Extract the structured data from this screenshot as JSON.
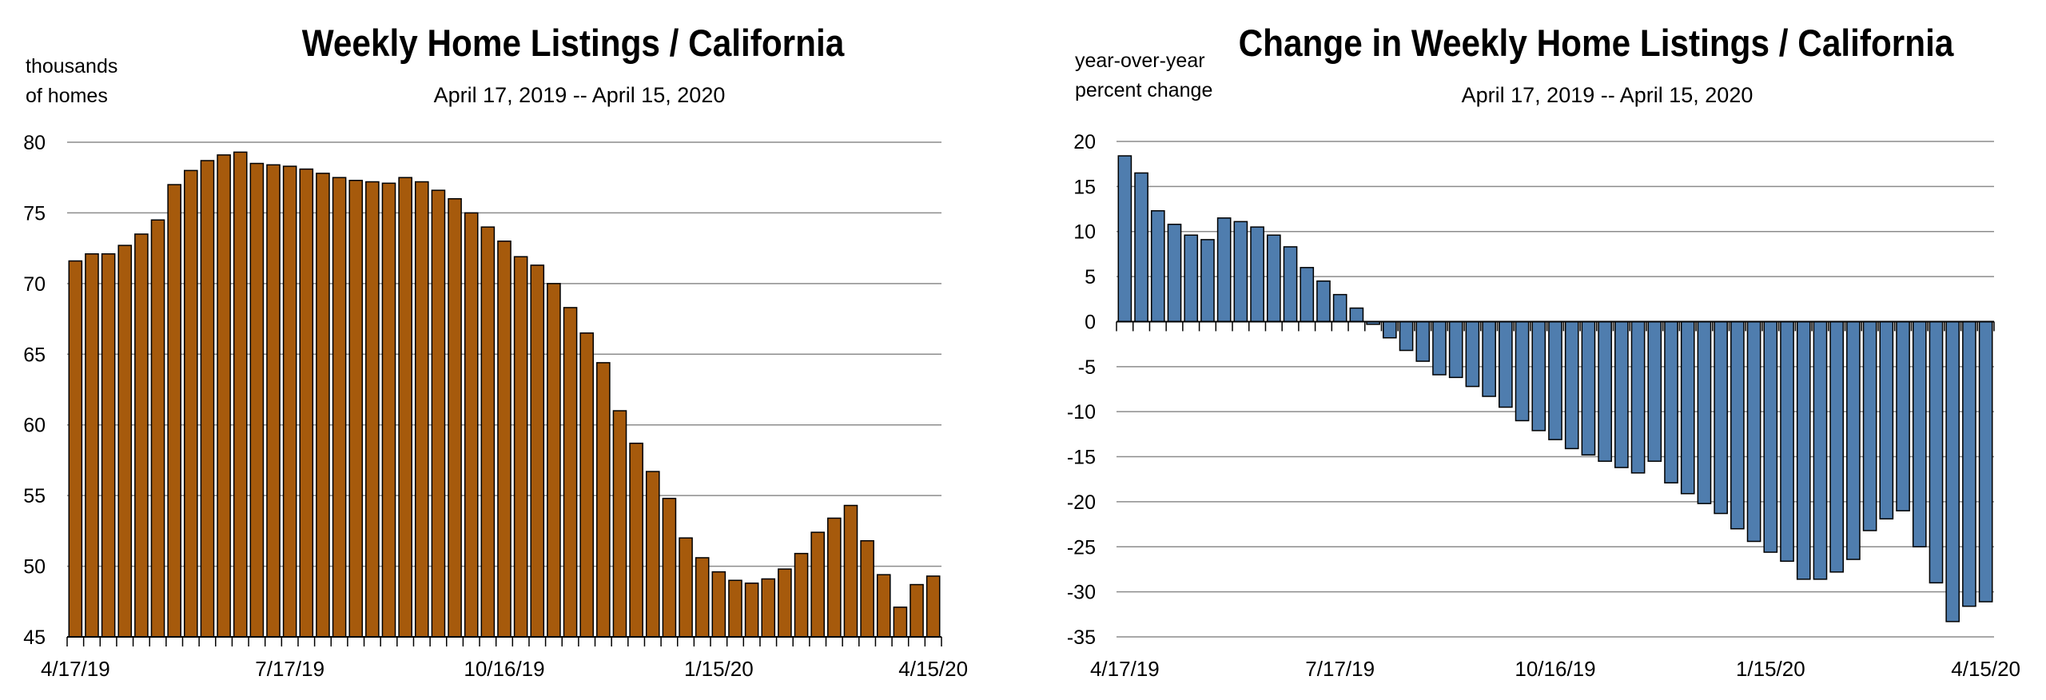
{
  "chart_data": [
    {
      "type": "bar",
      "title": "Weekly Home Listings / California",
      "subtitle": "April 17, 2019 -- April 15, 2020",
      "ylabel": "thousands\nof homes",
      "xlabel": "",
      "ylim": [
        45,
        80
      ],
      "yticks": [
        45,
        50,
        55,
        60,
        65,
        70,
        75,
        80
      ],
      "x_tick_labels": [
        "4/17/19",
        "7/17/19",
        "10/16/19",
        "1/15/20",
        "4/15/20"
      ],
      "grid": true,
      "bar_color": "#A65A0C",
      "x": [
        "4/17/19",
        "4/24/19",
        "5/1/19",
        "5/8/19",
        "5/15/19",
        "5/22/19",
        "5/29/19",
        "6/5/19",
        "6/12/19",
        "6/19/19",
        "6/26/19",
        "7/3/19",
        "7/10/19",
        "7/17/19",
        "7/24/19",
        "7/31/19",
        "8/7/19",
        "8/14/19",
        "8/21/19",
        "8/28/19",
        "9/4/19",
        "9/11/19",
        "9/18/19",
        "9/25/19",
        "10/2/19",
        "10/9/19",
        "10/16/19",
        "10/23/19",
        "10/30/19",
        "11/6/19",
        "11/13/19",
        "11/20/19",
        "11/27/19",
        "12/4/19",
        "12/11/19",
        "12/18/19",
        "12/25/19",
        "1/1/20",
        "1/8/20",
        "1/15/20",
        "1/22/20",
        "1/29/20",
        "2/5/20",
        "2/12/20",
        "2/19/20",
        "2/26/20",
        "3/4/20",
        "3/11/20",
        "3/18/20",
        "3/25/20",
        "4/1/20",
        "4/8/20",
        "4/15/20"
      ],
      "values": [
        71.6,
        72.1,
        72.1,
        72.7,
        73.5,
        74.5,
        77.0,
        78.0,
        78.7,
        79.1,
        79.3,
        78.5,
        78.4,
        78.3,
        78.1,
        77.8,
        77.5,
        77.3,
        77.2,
        77.1,
        77.5,
        77.2,
        76.6,
        76.0,
        75.0,
        74.0,
        73.0,
        71.9,
        71.3,
        70.0,
        68.3,
        66.5,
        64.4,
        61.0,
        58.7,
        56.7,
        54.8,
        52.0,
        50.6,
        49.6,
        49.0,
        48.8,
        49.1,
        49.8,
        50.9,
        52.4,
        53.4,
        54.3,
        51.8,
        49.4,
        47.1,
        48.7,
        49.3
      ]
    },
    {
      "type": "bar",
      "title": "Change in Weekly Home Listings / California",
      "subtitle": "April 17, 2019 -- April 15, 2020",
      "ylabel": "year-over-year\npercent change",
      "xlabel": "",
      "ylim": [
        -35,
        20
      ],
      "yticks": [
        -35,
        -30,
        -25,
        -20,
        -15,
        -10,
        -5,
        0,
        5,
        10,
        15,
        20
      ],
      "x_tick_labels": [
        "4/17/19",
        "7/17/19",
        "10/16/19",
        "1/15/20",
        "4/15/20"
      ],
      "grid": true,
      "bar_color": "#4F7DAE",
      "x": [
        "4/17/19",
        "4/24/19",
        "5/1/19",
        "5/8/19",
        "5/15/19",
        "5/22/19",
        "5/29/19",
        "6/5/19",
        "6/12/19",
        "6/19/19",
        "6/26/19",
        "7/3/19",
        "7/10/19",
        "7/17/19",
        "7/24/19",
        "7/31/19",
        "8/7/19",
        "8/14/19",
        "8/21/19",
        "8/28/19",
        "9/4/19",
        "9/11/19",
        "9/18/19",
        "9/25/19",
        "10/2/19",
        "10/9/19",
        "10/16/19",
        "10/23/19",
        "10/30/19",
        "11/6/19",
        "11/13/19",
        "11/20/19",
        "11/27/19",
        "12/4/19",
        "12/11/19",
        "12/18/19",
        "12/25/19",
        "1/1/20",
        "1/8/20",
        "1/15/20",
        "1/22/20",
        "1/29/20",
        "2/5/20",
        "2/12/20",
        "2/19/20",
        "2/26/20",
        "3/4/20",
        "3/11/20",
        "3/18/20",
        "3/25/20",
        "4/1/20",
        "4/8/20",
        "4/15/20"
      ],
      "values": [
        18.4,
        16.5,
        12.3,
        10.8,
        9.6,
        9.1,
        11.5,
        11.1,
        10.5,
        9.6,
        8.3,
        6.0,
        4.5,
        3.0,
        1.5,
        -0.3,
        -1.8,
        -3.2,
        -4.4,
        -5.9,
        -6.2,
        -7.2,
        -8.3,
        -9.5,
        -11.0,
        -12.1,
        -13.1,
        -14.1,
        -14.8,
        -15.5,
        -16.2,
        -16.8,
        -15.5,
        -17.9,
        -19.1,
        -20.2,
        -21.3,
        -23.0,
        -24.4,
        -25.6,
        -26.6,
        -28.6,
        -28.6,
        -27.8,
        -26.4,
        -23.2,
        -21.9,
        -21.0,
        -25.0,
        -29.0,
        -33.3,
        -31.6,
        -31.1
      ]
    }
  ]
}
